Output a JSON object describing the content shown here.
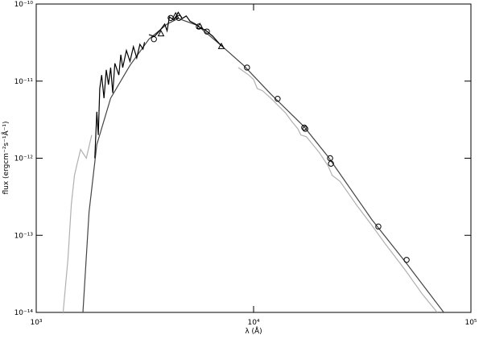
{
  "chart_data": {
    "type": "line",
    "xlabel": "λ (Å)",
    "ylabel": "flux (ergcm⁻²s⁻¹Å⁻¹)",
    "xscale": "log",
    "yscale": "log",
    "xlim": [
      1000,
      100000
    ],
    "ylim": [
      1e-14,
      1e-10
    ],
    "xticks": [
      {
        "value": 1000,
        "label": "10³"
      },
      {
        "value": 10000,
        "label": "10⁴"
      },
      {
        "value": 100000,
        "label": "10⁵"
      }
    ],
    "yticks": [
      {
        "value": 1e-14,
        "label": "10⁻¹⁴"
      },
      {
        "value": 1e-13,
        "label": "10⁻¹³"
      },
      {
        "value": 1e-12,
        "label": "10⁻¹²"
      },
      {
        "value": 1e-11,
        "label": "10⁻¹¹"
      },
      {
        "value": 1e-10,
        "label": "10⁻¹⁰"
      }
    ],
    "series": [
      {
        "color": "#b0b0b0",
        "marker": "none",
        "x": [
          1330,
          1400,
          1450,
          1500,
          1550,
          1600,
          1700,
          1800,
          null,
          8500,
          9500,
          10000,
          10400,
          11000,
          12000,
          13000,
          14000,
          15000,
          16000,
          16500,
          17500,
          20000,
          22000,
          23000,
          25000,
          30000,
          35000,
          40000,
          50000,
          60000,
          70000
        ],
        "values": [
          1e-14,
          5e-14,
          2.5e-13,
          6e-13,
          9e-13,
          1.3e-12,
          1e-12,
          2e-12,
          null,
          1.5e-11,
          1.2e-11,
          1.05e-11,
          8e-12,
          7.5e-12,
          6e-12,
          4.8e-12,
          3.9e-12,
          3e-12,
          2.4e-12,
          2e-12,
          1.9e-12,
          1.2e-12,
          8e-13,
          6e-13,
          5e-13,
          2.4e-13,
          1.35e-13,
          8e-14,
          3.5e-14,
          1.7e-14,
          1e-14
        ]
      },
      {
        "color": "#444444",
        "marker": "none",
        "x": [
          1640,
          1750,
          1900,
          2200,
          2700,
          3300,
          4000,
          4500,
          5500,
          7000,
          9000,
          12000,
          17000,
          22000,
          35000,
          50000,
          75000
        ],
        "values": [
          1e-14,
          2e-13,
          1.5e-12,
          6e-12,
          1.6e-11,
          3.5e-11,
          5.5e-11,
          6.5e-11,
          5.3e-11,
          3e-11,
          1.6e-11,
          6.8e-12,
          2.6e-12,
          1.05e-12,
          1.6e-13,
          4.5e-14,
          1e-14
        ]
      },
      {
        "color": "#000000",
        "marker": "none",
        "x": [
          1860,
          1900,
          1930,
          1960,
          2000,
          2050,
          2100,
          2150,
          2200,
          2250,
          2300,
          2400,
          2450,
          2500,
          2600,
          2700,
          2800,
          2900,
          3000,
          3100,
          3150,
          null,
          3300,
          3500,
          3700,
          3900,
          4000,
          4100,
          4300,
          4500,
          4700,
          4900,
          5100,
          5400,
          5700,
          6000,
          6500,
          7000,
          7200
        ],
        "values": [
          1e-12,
          4e-12,
          2e-12,
          8e-12,
          1.2e-11,
          6e-12,
          1.4e-11,
          9e-12,
          1.5e-11,
          7e-12,
          1.7e-11,
          1.2e-11,
          2.2e-11,
          1.5e-11,
          2.5e-11,
          1.8e-11,
          2.8e-11,
          2e-11,
          3e-11,
          2.6e-11,
          3.2e-11,
          null,
          4e-11,
          3.8e-11,
          4.5e-11,
          5.5e-11,
          4.5e-11,
          6.8e-11,
          6.2e-11,
          7.8e-11,
          6.5e-11,
          7e-11,
          6e-11,
          5.5e-11,
          4.9e-11,
          4.6e-11,
          3.8e-11,
          3e-11,
          2.8e-11
        ]
      },
      {
        "color": "#000000",
        "marker": "circle",
        "x": [
          3480,
          4155,
          4530,
          5600,
          6100,
          9330,
          12900,
          17100,
          17300,
          22500,
          22700,
          37500,
          50600
        ],
        "values": [
          3.5e-11,
          6.6e-11,
          6.6e-11,
          5.1e-11,
          4.4e-11,
          1.5e-11,
          5.9e-12,
          2.5e-12,
          2.4e-12,
          1e-12,
          8.5e-13,
          1.3e-13,
          4.8e-14
        ]
      },
      {
        "color": "#000000",
        "marker": "triangle",
        "x": [
          3750,
          4380,
          5660,
          7110
        ],
        "values": [
          4.1e-11,
          7e-11,
          5.1e-11,
          2.8e-11
        ]
      }
    ]
  }
}
